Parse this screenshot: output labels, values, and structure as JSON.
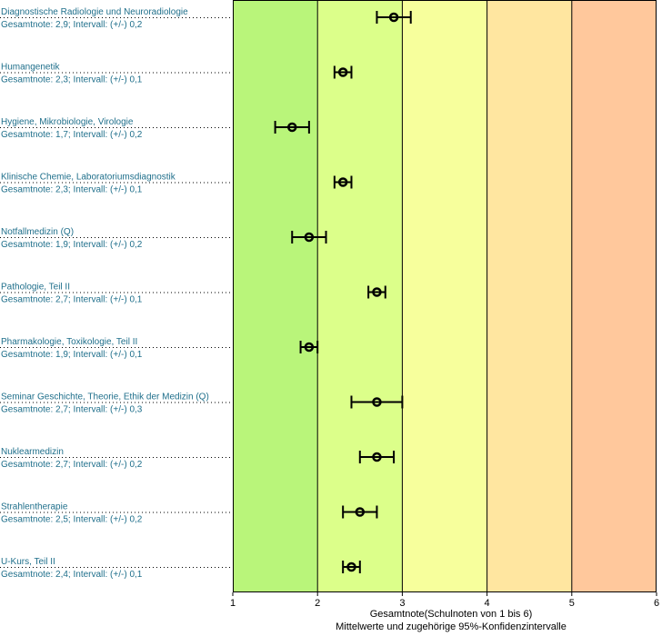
{
  "chart_data": {
    "type": "scatter",
    "xlabel": "Gesamtnote(Schulnoten von 1 bis 6)",
    "xlabel_sub": "Mittelwerte und zugehörige 95%-Konfidenzintervalle",
    "xlim": [
      1,
      6
    ],
    "xticks": [
      "1",
      "2",
      "3",
      "4",
      "5",
      "6"
    ],
    "bands": [
      {
        "from": 1,
        "to": 2,
        "color": "#b9f57a"
      },
      {
        "from": 2,
        "to": 3,
        "color": "#dcff8a"
      },
      {
        "from": 3,
        "to": 4,
        "color": "#f7ff9c"
      },
      {
        "from": 4,
        "to": 5,
        "color": "#ffe6a0"
      },
      {
        "from": 5,
        "to": 6,
        "color": "#ffc89c"
      }
    ],
    "items": [
      {
        "name": "Diagnostische Radiologie und Neuroradiologie",
        "line2": "Gesamtnote: 2,9;  Intervall: (+/-) 0,2",
        "mean": 2.9,
        "interval": 0.2
      },
      {
        "name": "Humangenetik",
        "line2": "Gesamtnote: 2,3;  Intervall: (+/-) 0,1",
        "mean": 2.3,
        "interval": 0.1
      },
      {
        "name": "Hygiene, Mikrobiologie, Virologie",
        "line2": "Gesamtnote: 1,7;  Intervall: (+/-) 0,2",
        "mean": 1.7,
        "interval": 0.2
      },
      {
        "name": "Klinische Chemie, Laboratoriumsdiagnostik",
        "line2": "Gesamtnote: 2,3;  Intervall: (+/-) 0,1",
        "mean": 2.3,
        "interval": 0.1
      },
      {
        "name": "Notfallmedizin (Q)",
        "line2": "Gesamtnote: 1,9;  Intervall: (+/-) 0,2",
        "mean": 1.9,
        "interval": 0.2
      },
      {
        "name": "Pathologie, Teil II",
        "line2": "Gesamtnote: 2,7;  Intervall: (+/-) 0,1",
        "mean": 2.7,
        "interval": 0.1
      },
      {
        "name": "Pharmakologie, Toxikologie, Teil II",
        "line2": "Gesamtnote: 1,9;  Intervall: (+/-) 0,1",
        "mean": 1.9,
        "interval": 0.1
      },
      {
        "name": "Seminar Geschichte, Theorie, Ethik der Medizin (Q)",
        "line2": "Gesamtnote: 2,7;  Intervall: (+/-) 0,3",
        "mean": 2.7,
        "interval": 0.3
      },
      {
        "name": "Nuklearmedizin",
        "line2": "Gesamtnote: 2,7;  Intervall: (+/-) 0,2",
        "mean": 2.7,
        "interval": 0.2
      },
      {
        "name": "Strahlentherapie",
        "line2": "Gesamtnote: 2,5;  Intervall: (+/-) 0,2",
        "mean": 2.5,
        "interval": 0.2
      },
      {
        "name": "U-Kurs, Teil II",
        "line2": "Gesamtnote: 2,4;  Intervall: (+/-) 0,1",
        "mean": 2.4,
        "interval": 0.1
      }
    ]
  }
}
